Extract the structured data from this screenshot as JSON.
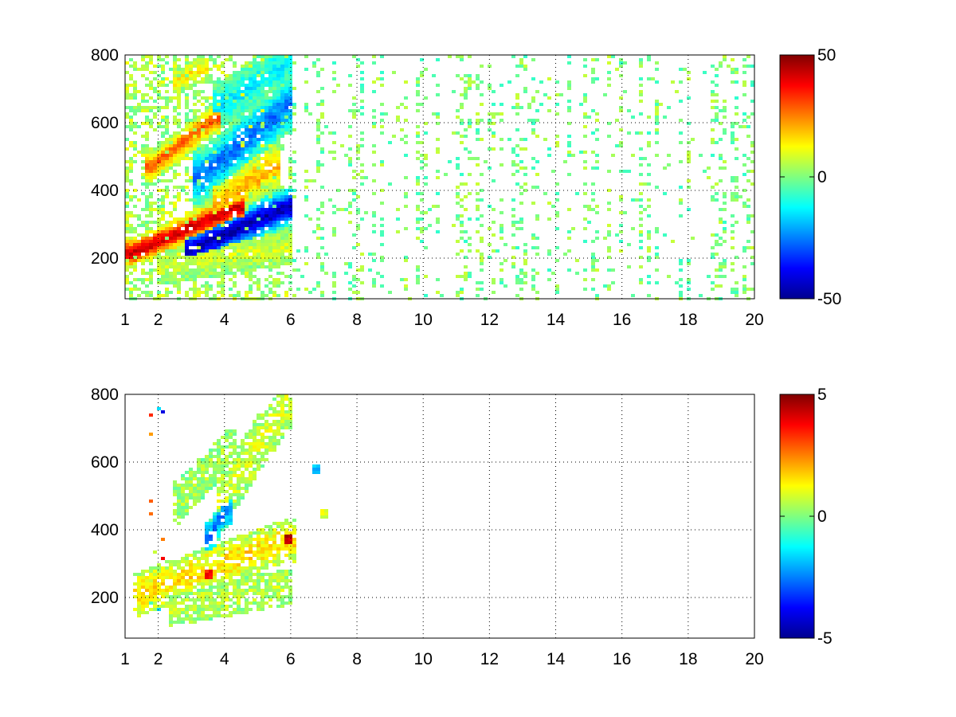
{
  "figure": {
    "background": "#ffffff",
    "colormap": "jet",
    "colors": {
      "axes": "#000000",
      "grid": "#000000"
    }
  },
  "chart_data": [
    {
      "type": "heatmap",
      "title": "",
      "xlabel": "",
      "ylabel": "",
      "xlim": [
        1,
        20
      ],
      "ylim": [
        80,
        800
      ],
      "x_ticks": [
        1,
        2,
        4,
        6,
        8,
        10,
        12,
        14,
        16,
        18,
        20
      ],
      "x_tick_labels": [
        "1",
        "2",
        "4",
        "6",
        "8",
        "10",
        "12",
        "14",
        "16",
        "18",
        "20"
      ],
      "y_ticks": [
        200,
        400,
        600,
        800
      ],
      "y_tick_labels": [
        "200",
        "400",
        "600",
        "800"
      ],
      "grid": true,
      "grid_style": "dotted",
      "colorbar": {
        "clim": [
          -50,
          50
        ],
        "ticks": [
          -50,
          0,
          50
        ],
        "tick_labels": [
          "-50",
          "0",
          "50"
        ]
      },
      "features": [
        {
          "kind": "band",
          "x_start": 1.2,
          "y_start": 215,
          "x_end": 4.4,
          "y_end": 350,
          "width": 40,
          "value": 42
        },
        {
          "kind": "band",
          "x_start": 1.8,
          "y_start": 470,
          "x_end": 3.7,
          "y_end": 610,
          "width": 40,
          "value": 28
        },
        {
          "kind": "band",
          "x_start": 2.6,
          "y_start": 720,
          "x_end": 3.3,
          "y_end": 760,
          "width": 35,
          "value": 14
        },
        {
          "kind": "band",
          "x_start": 3.0,
          "y_start": 225,
          "x_end": 5.9,
          "y_end": 350,
          "width": 50,
          "value": -45
        },
        {
          "kind": "band",
          "x_start": 3.3,
          "y_start": 440,
          "x_end": 5.9,
          "y_end": 650,
          "width": 70,
          "value": -26
        },
        {
          "kind": "band",
          "x_start": 3.9,
          "y_start": 650,
          "x_end": 5.9,
          "y_end": 780,
          "width": 60,
          "value": -14
        },
        {
          "kind": "band",
          "x_start": 2.2,
          "y_start": 180,
          "x_end": 5.8,
          "y_end": 230,
          "width": 45,
          "value": 8
        },
        {
          "kind": "band",
          "x_start": 3.8,
          "y_start": 360,
          "x_end": 5.5,
          "y_end": 470,
          "width": 60,
          "value": 20
        }
      ],
      "background_values": {
        "dense_region": [
          1,
          6
        ],
        "scatter_region": [
          6,
          20
        ],
        "range": [
          -8,
          8
        ]
      }
    },
    {
      "type": "heatmap",
      "title": "",
      "xlabel": "",
      "ylabel": "",
      "xlim": [
        1,
        20
      ],
      "ylim": [
        80,
        800
      ],
      "x_ticks": [
        1,
        2,
        4,
        6,
        8,
        10,
        12,
        14,
        16,
        18,
        20
      ],
      "x_tick_labels": [
        "1",
        "2",
        "4",
        "6",
        "8",
        "10",
        "12",
        "14",
        "16",
        "18",
        "20"
      ],
      "y_ticks": [
        200,
        400,
        600,
        800
      ],
      "y_tick_labels": [
        "200",
        "400",
        "600",
        "800"
      ],
      "grid": true,
      "grid_style": "dotted",
      "colorbar": {
        "clim": [
          -5,
          5
        ],
        "ticks": [
          -5,
          0,
          5
        ],
        "tick_labels": [
          "-5",
          "0",
          "5"
        ]
      },
      "features": [
        {
          "kind": "band",
          "x_start": 1.4,
          "y_start": 210,
          "x_end": 6.0,
          "y_end": 370,
          "width": 60,
          "value": 1.6
        },
        {
          "kind": "band",
          "x_start": 2.5,
          "y_start": 170,
          "x_end": 5.8,
          "y_end": 230,
          "width": 50,
          "value": 0.6
        },
        {
          "kind": "band",
          "x_start": 2.6,
          "y_start": 480,
          "x_end": 4.2,
          "y_end": 640,
          "width": 60,
          "value": 0.4
        },
        {
          "kind": "band",
          "x_start": 3.6,
          "y_start": 380,
          "x_end": 4.0,
          "y_end": 460,
          "width": 50,
          "value": -2.5
        },
        {
          "kind": "band",
          "x_start": 4.0,
          "y_start": 500,
          "x_end": 5.9,
          "y_end": 780,
          "width": 80,
          "value": 0.8
        },
        {
          "kind": "spot",
          "x": 5.9,
          "y": 370,
          "value": 4.5
        },
        {
          "kind": "spot",
          "x": 3.5,
          "y": 265,
          "value": 3.5
        },
        {
          "kind": "spot",
          "x": 6.8,
          "y": 580,
          "value": -1.8
        },
        {
          "kind": "spot",
          "x": 7.0,
          "y": 450,
          "value": 1.0
        }
      ],
      "active_x_range": [
        1.3,
        7.2
      ]
    }
  ]
}
